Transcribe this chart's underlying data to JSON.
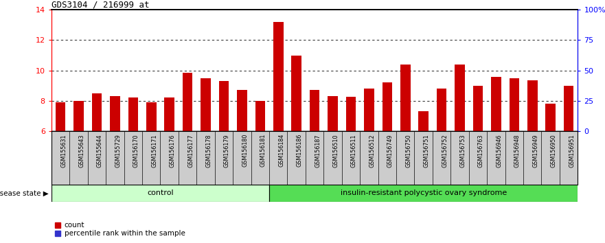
{
  "title": "GDS3104 / 216999_at",
  "categories": [
    "GSM155631",
    "GSM155643",
    "GSM155644",
    "GSM155729",
    "GSM156170",
    "GSM156171",
    "GSM156176",
    "GSM156177",
    "GSM156178",
    "GSM156179",
    "GSM156180",
    "GSM156181",
    "GSM156184",
    "GSM156186",
    "GSM156187",
    "GSM156510",
    "GSM156511",
    "GSM156512",
    "GSM156749",
    "GSM156750",
    "GSM156751",
    "GSM156752",
    "GSM156753",
    "GSM156763",
    "GSM156946",
    "GSM156948",
    "GSM156949",
    "GSM156950",
    "GSM156951"
  ],
  "count_values": [
    7.9,
    8.0,
    8.5,
    8.3,
    8.2,
    7.9,
    8.2,
    9.85,
    9.5,
    9.3,
    8.7,
    8.0,
    13.2,
    11.0,
    8.7,
    8.3,
    8.25,
    8.8,
    9.2,
    10.4,
    7.3,
    8.8,
    10.4,
    9.0,
    9.6,
    9.5,
    9.35,
    7.8,
    9.0
  ],
  "percentile_values": [
    0.12,
    0.12,
    0.12,
    0.12,
    0.12,
    0.12,
    0.12,
    0.12,
    0.12,
    0.12,
    0.12,
    0.2,
    0.35,
    0.12,
    0.12,
    0.35,
    0.12,
    0.12,
    0.12,
    0.12,
    0.12,
    0.35,
    0.12,
    0.12,
    0.12,
    0.12,
    0.12,
    0.12,
    0.35
  ],
  "control_count": 12,
  "disease_count": 17,
  "ylim_left": [
    6,
    14
  ],
  "ylim_right": [
    0,
    100
  ],
  "yticks_left": [
    6,
    8,
    10,
    12,
    14
  ],
  "yticks_right": [
    0,
    25,
    50,
    75,
    100
  ],
  "ytick_labels_right": [
    "0",
    "25",
    "50",
    "75",
    "100%"
  ],
  "count_color": "#cc0000",
  "percentile_color": "#3333cc",
  "bar_width": 0.55,
  "control_bg": "#ccffcc",
  "disease_bg": "#55dd55",
  "label_bg": "#cccccc",
  "group_label_control": "control",
  "group_label_disease": "insulin-resistant polycystic ovary syndrome",
  "disease_state_label": "disease state",
  "legend_count": "count",
  "legend_percentile": "percentile rank within the sample",
  "fig_width": 8.81,
  "fig_height": 3.54,
  "dpi": 100
}
